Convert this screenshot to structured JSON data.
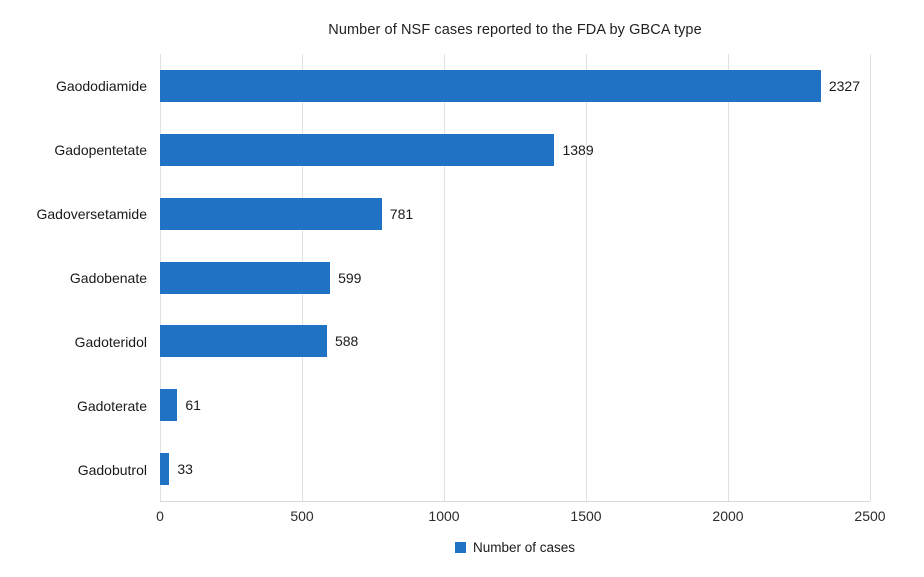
{
  "chart_data": {
    "type": "bar",
    "orientation": "horizontal",
    "title": "Number of NSF cases reported to the FDA by GBCA type",
    "categories": [
      "Gaododiamide",
      "Gadopentetate",
      "Gadoversetamide",
      "Gadobenate",
      "Gadoteridol",
      "Gadoterate",
      "Gadobutrol"
    ],
    "values": [
      2327,
      1389,
      781,
      599,
      588,
      61,
      33
    ],
    "series_name": "Number of cases",
    "xlabel": "",
    "ylabel": "",
    "xlim": [
      0,
      2500
    ],
    "xticks": [
      0,
      500,
      1000,
      1500,
      2000,
      2500
    ],
    "grid": true,
    "legend_position": "bottom",
    "value_labels": true,
    "bar_color": "#1f72c4",
    "grid_color": "#e0e0e0",
    "axis_line_color": "#d9d9d9",
    "text_color": "#1a1a1a"
  }
}
